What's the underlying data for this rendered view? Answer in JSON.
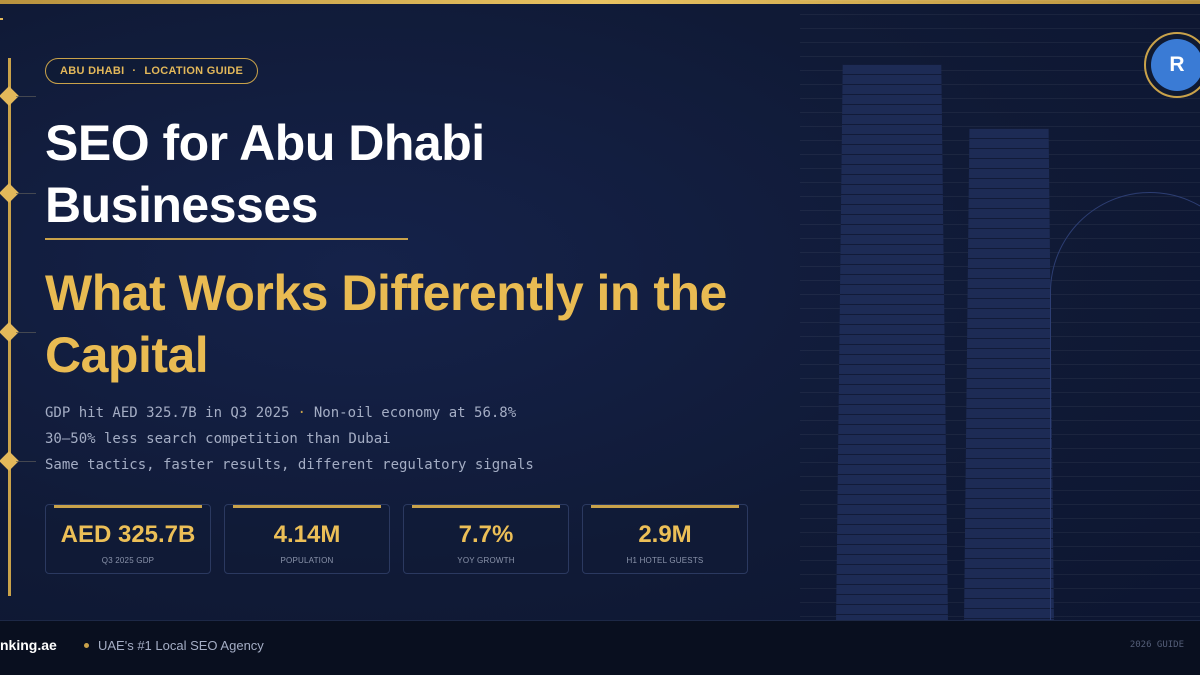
{
  "badge": {
    "city": "ABU DHABI",
    "separator": "·",
    "label": "LOCATION GUIDE"
  },
  "avatar": {
    "initial": "R"
  },
  "title": "SEO for Abu Dhabi Businesses",
  "subtitle": "What Works Differently in the Capital",
  "lines": [
    {
      "parts": [
        "GDP hit AED 325.7B in Q3 2025",
        "·",
        "Non-oil economy at 56.8%"
      ]
    },
    {
      "parts": [
        "30–50% less search competition than Dubai"
      ]
    },
    {
      "parts": [
        "Same tactics, faster results, different regulatory signals"
      ]
    }
  ],
  "stats": [
    {
      "value": "AED 325.7B",
      "label": "Q3 2025 GDP"
    },
    {
      "value": "4.14M",
      "label": "POPULATION"
    },
    {
      "value": "7.7%",
      "label": "YOY GROWTH"
    },
    {
      "value": "2.9M",
      "label": "H1 HOTEL GUESTS"
    }
  ],
  "footer": {
    "brand": "nking.ae",
    "tagline": "UAE's #1 Local SEO Agency",
    "guide": "2026 GUIDE"
  },
  "colors": {
    "gold": "#e3b85a",
    "navy": "#0f1a33",
    "avatar": "#3a7bd5"
  }
}
